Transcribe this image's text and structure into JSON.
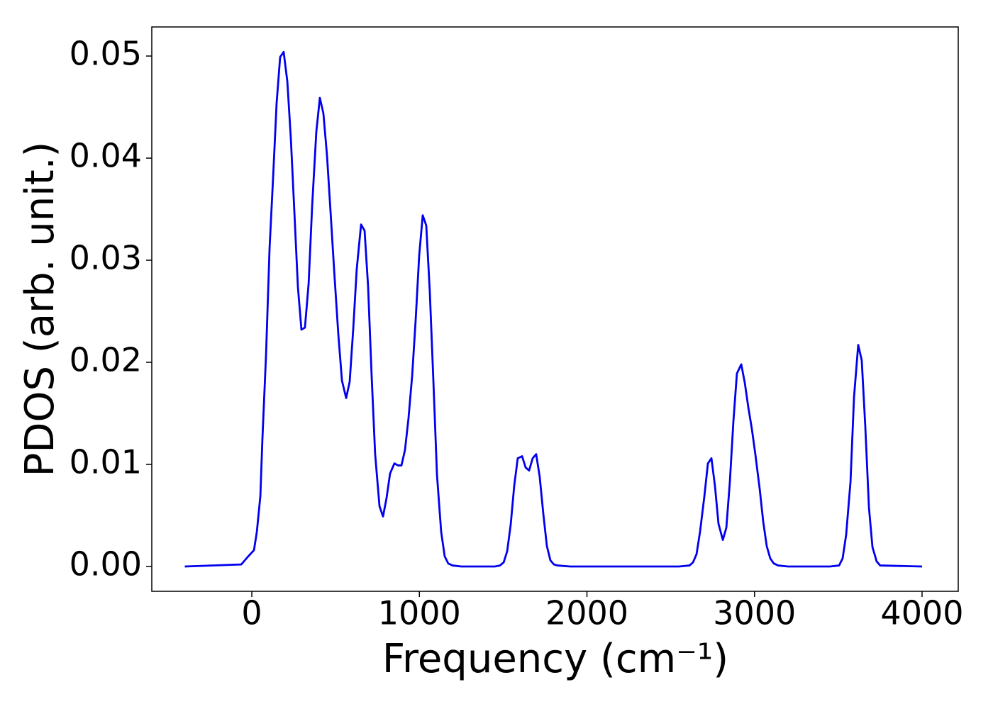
{
  "chart_data": {
    "type": "line",
    "xlabel": "Frequency (cm⁻¹)",
    "ylabel": "PDOS (arb. unit.)",
    "x": [
      -400,
      -63,
      -21,
      13,
      30,
      51,
      63,
      85,
      106,
      127,
      148,
      169,
      190,
      212,
      233,
      254,
      275,
      296,
      317,
      339,
      360,
      385,
      406,
      427,
      449,
      470,
      491,
      516,
      538,
      563,
      584,
      605,
      626,
      652,
      673,
      694,
      715,
      736,
      762,
      783,
      804,
      825,
      851,
      872,
      893,
      914,
      935,
      957,
      978,
      999,
      1020,
      1041,
      1062,
      1084,
      1105,
      1130,
      1151,
      1172,
      1198,
      1250,
      1450,
      1481,
      1503,
      1524,
      1545,
      1566,
      1587,
      1613,
      1634,
      1655,
      1676,
      1697,
      1718,
      1740,
      1761,
      1782,
      1803,
      1824,
      1900,
      2550,
      2612,
      2633,
      2654,
      2675,
      2701,
      2722,
      2743,
      2764,
      2785,
      2811,
      2832,
      2853,
      2874,
      2895,
      2921,
      2942,
      2963,
      2984,
      3005,
      3031,
      3052,
      3073,
      3094,
      3115,
      3141,
      3200,
      3450,
      3505,
      3526,
      3547,
      3573,
      3594,
      3619,
      3640,
      3661,
      3683,
      3704,
      3729,
      3750,
      4000
    ],
    "series": [
      {
        "name": "PDOS",
        "color": "#0000ee",
        "values": [
          0,
          0.0002,
          0.001,
          0.0016,
          0.0034,
          0.0069,
          0.0124,
          0.0208,
          0.0312,
          0.0381,
          0.0454,
          0.0499,
          0.0504,
          0.0475,
          0.0419,
          0.0347,
          0.0274,
          0.0232,
          0.0234,
          0.0277,
          0.0353,
          0.0426,
          0.0459,
          0.0444,
          0.0402,
          0.0347,
          0.0291,
          0.0228,
          0.0182,
          0.0165,
          0.0181,
          0.0232,
          0.0291,
          0.0335,
          0.0329,
          0.0274,
          0.0187,
          0.011,
          0.0059,
          0.0049,
          0.0067,
          0.0091,
          0.0101,
          0.0099,
          0.0099,
          0.0114,
          0.0145,
          0.0187,
          0.0242,
          0.0305,
          0.0344,
          0.0334,
          0.027,
          0.018,
          0.009,
          0.0034,
          0.001,
          0.0003,
          0.0001,
          0,
          0,
          0.0001,
          0.0004,
          0.0015,
          0.0041,
          0.0079,
          0.0106,
          0.0108,
          0.0097,
          0.0094,
          0.0106,
          0.011,
          0.0088,
          0.0051,
          0.002,
          0.0006,
          0.0002,
          0.0001,
          0,
          0,
          0.0001,
          0.0004,
          0.0012,
          0.0034,
          0.0069,
          0.0101,
          0.0106,
          0.0079,
          0.0042,
          0.0026,
          0.0038,
          0.0083,
          0.0142,
          0.0189,
          0.0198,
          0.018,
          0.0156,
          0.0135,
          0.011,
          0.0076,
          0.0044,
          0.002,
          0.0008,
          0.0003,
          0.0001,
          0,
          0,
          0.0001,
          0.0008,
          0.0031,
          0.0083,
          0.0166,
          0.0217,
          0.0202,
          0.0138,
          0.0058,
          0.0019,
          0.0005,
          0.0001,
          0
        ]
      }
    ],
    "xlim": [
      -597,
      4216
    ],
    "ylim": [
      -0.00243,
      0.05285
    ],
    "xticks": [
      0,
      1000,
      2000,
      3000,
      4000
    ],
    "yticks": [
      {
        "value": 0,
        "label": "0.00"
      },
      0.01,
      0.02,
      0.03,
      0.04,
      0.05
    ],
    "grid": false
  }
}
